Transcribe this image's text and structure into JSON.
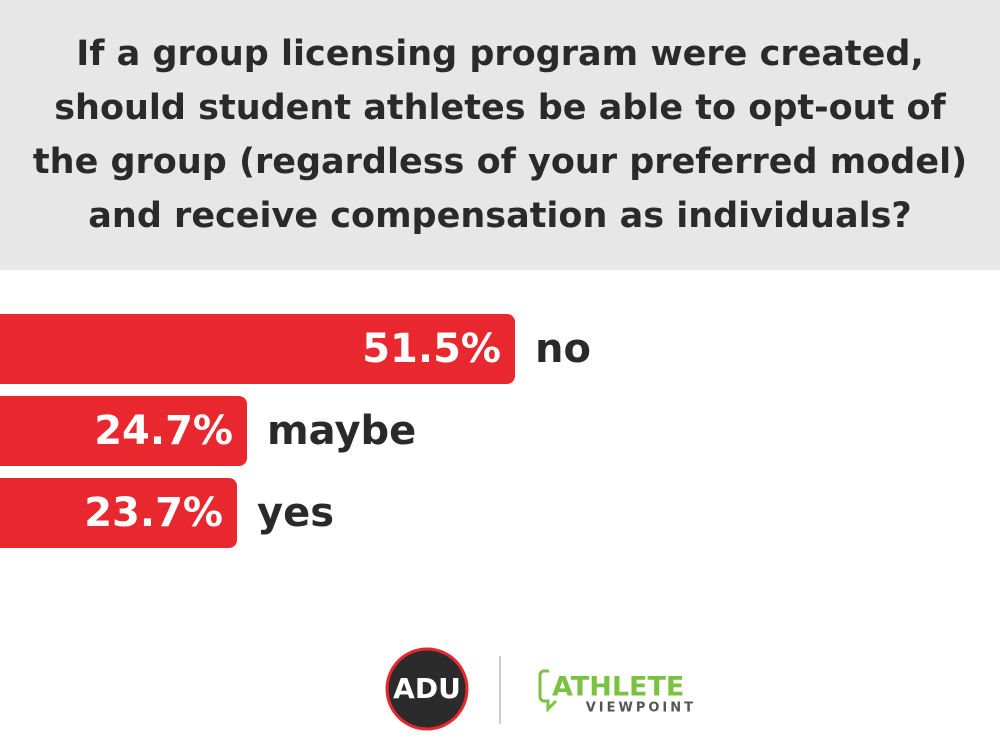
{
  "chart_data": {
    "type": "bar",
    "orientation": "horizontal",
    "title": "If a group licensing program were created, should student athletes be able to opt-out of the group (regardless of your preferred model) and receive compensation as individuals?",
    "categories": [
      "no",
      "maybe",
      "yes"
    ],
    "values": [
      51.5,
      24.7,
      23.7
    ],
    "value_labels": [
      "51.5%",
      "24.7%",
      "23.7%"
    ],
    "color": "#e8282e",
    "xlim": [
      0,
      100
    ]
  },
  "logos": {
    "adu": "ADU",
    "athlete": "ATHLETE",
    "viewpoint": "VIEWPOINT"
  }
}
